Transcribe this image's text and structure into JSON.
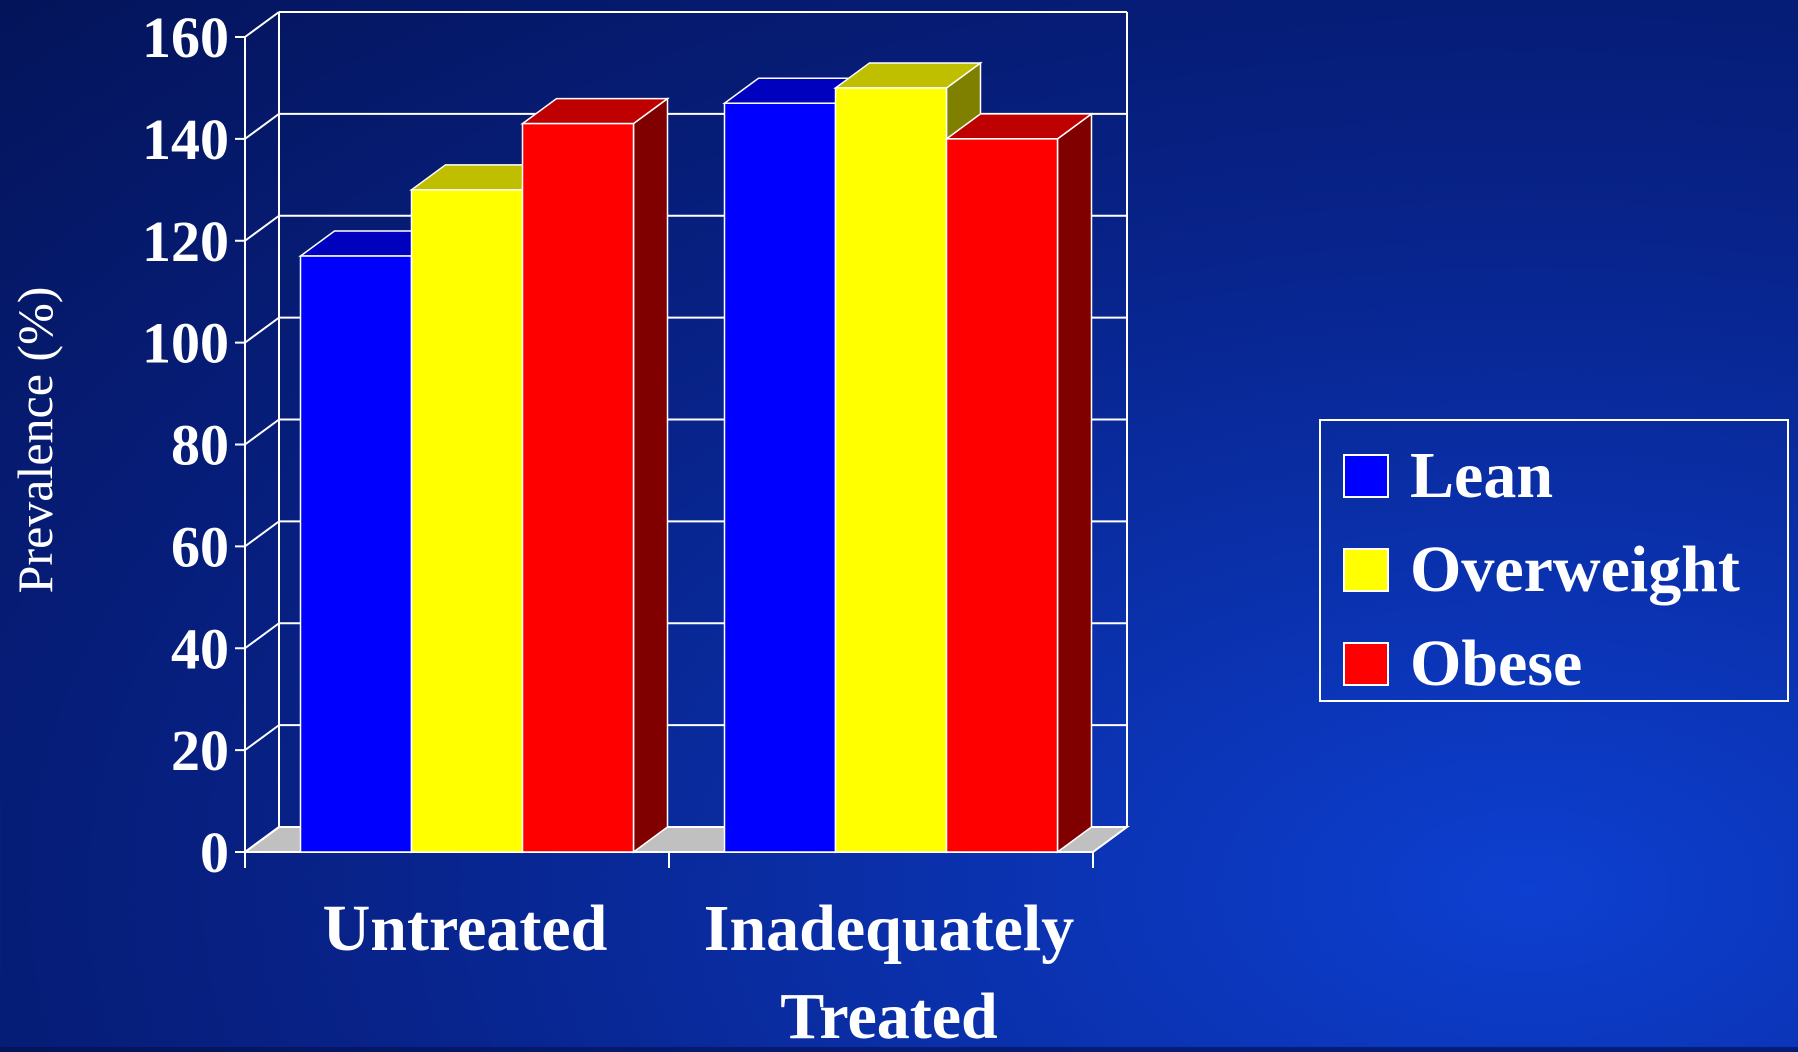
{
  "chart_data": {
    "type": "bar",
    "style": "3d-clustered-column",
    "categories": [
      [
        "Untreated"
      ],
      [
        "Inadequately",
        "Treated"
      ]
    ],
    "series": [
      {
        "name": "Lean",
        "color": "#0000ff",
        "values": [
          117,
          147
        ]
      },
      {
        "name": "Overweight",
        "color": "#ffff00",
        "values": [
          130,
          150
        ]
      },
      {
        "name": "Obese",
        "color": "#ff0000",
        "values": [
          143,
          140
        ]
      }
    ],
    "ylabel": "Prevalence (%)",
    "xlabel": "",
    "title": "",
    "ylim": [
      0,
      160
    ],
    "yticks": [
      0,
      20,
      40,
      60,
      80,
      100,
      120,
      140,
      160
    ],
    "grid": true,
    "legend": "right"
  },
  "colors": {
    "background": "#0a2a9a",
    "grid": "#ffffff",
    "text": "#ffffff",
    "floor": "#c0c0c0"
  }
}
